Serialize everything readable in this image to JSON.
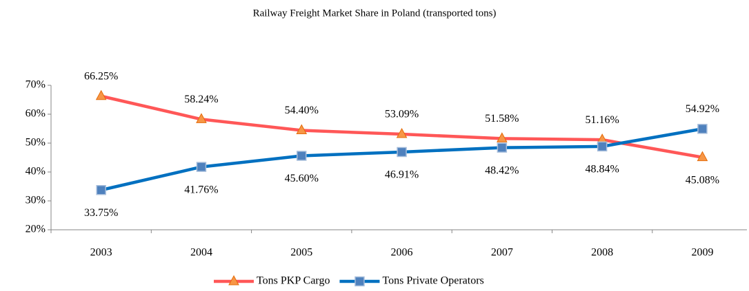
{
  "chart_data": {
    "type": "line",
    "title": "Railway Freight Market Share in Poland (transported tons)",
    "categories": [
      "2003",
      "2004",
      "2005",
      "2006",
      "2007",
      "2008",
      "2009"
    ],
    "series": [
      {
        "name": "Tons PKP Cargo",
        "color": "#ff5757",
        "marker": "triangle",
        "marker_color": "#f79646",
        "values": [
          66.25,
          58.24,
          54.4,
          53.09,
          51.58,
          51.16,
          45.08
        ],
        "value_labels": [
          "66.25%",
          "58.24%",
          "54.40%",
          "53.09%",
          "51.58%",
          "51.16%",
          "45.08%"
        ]
      },
      {
        "name": "Tons Private Operators",
        "color": "#0070c0",
        "marker": "square",
        "marker_color": "#4f81bd",
        "values": [
          33.75,
          41.76,
          45.6,
          46.91,
          48.42,
          48.84,
          54.92
        ],
        "value_labels": [
          "33.75%",
          "41.76%",
          "45.60%",
          "46.91%",
          "48.42%",
          "48.84%",
          "54.92%"
        ]
      }
    ],
    "ylim": [
      20,
      70
    ],
    "yticks": [
      {
        "value": 20,
        "label": "20%"
      },
      {
        "value": 30,
        "label": "30%"
      },
      {
        "value": 40,
        "label": "40%"
      },
      {
        "value": 50,
        "label": "50%"
      },
      {
        "value": 60,
        "label": "60%"
      },
      {
        "value": 70,
        "label": "70%"
      }
    ],
    "grid": false,
    "legend": "bottom"
  }
}
